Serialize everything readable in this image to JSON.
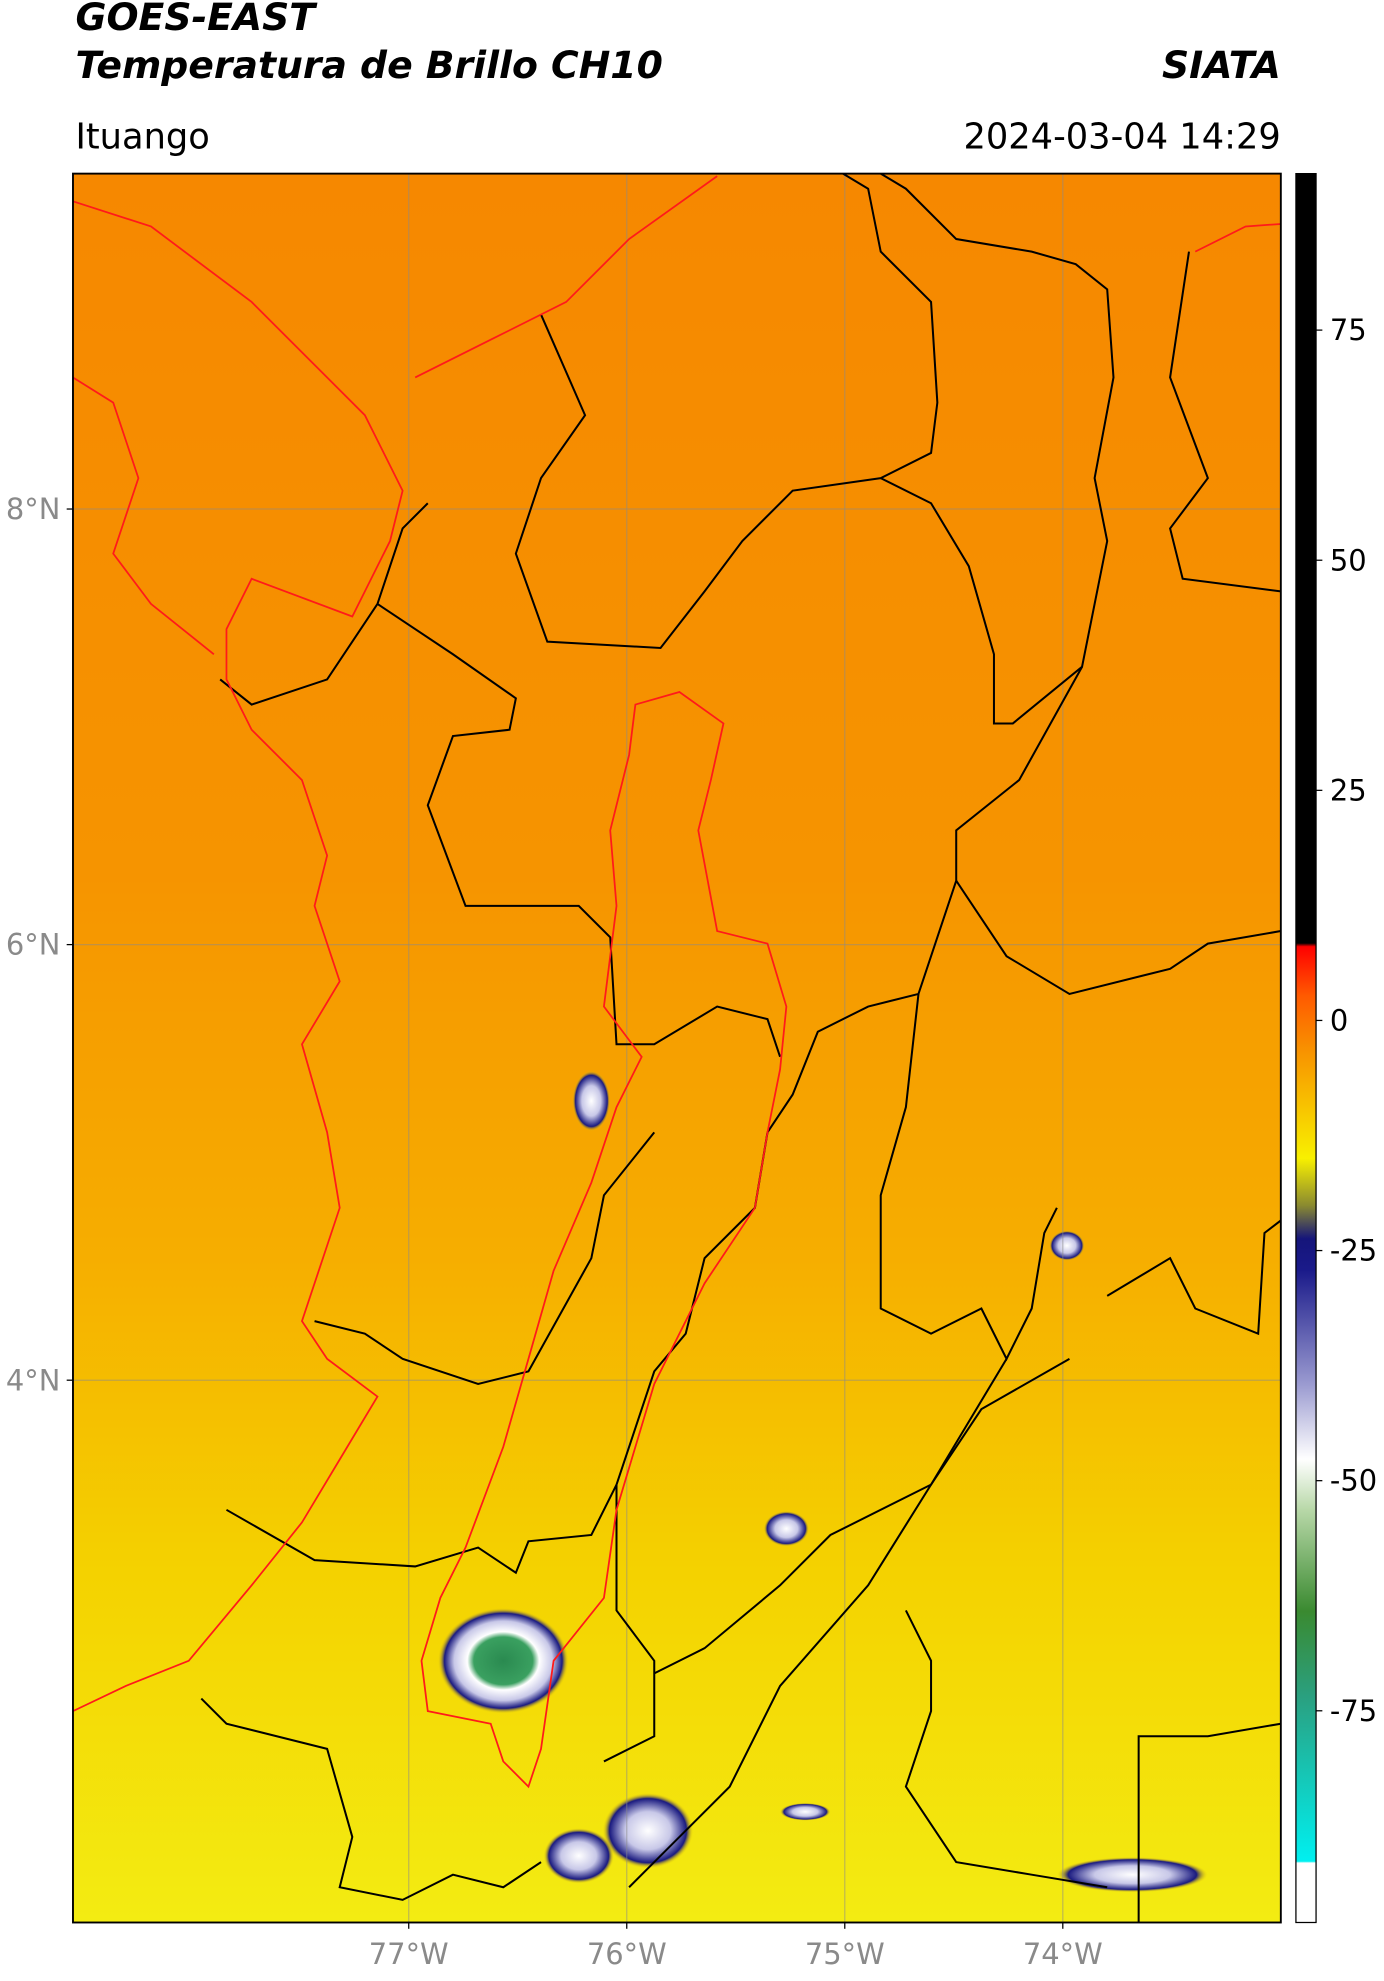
{
  "header": {
    "title": "GOES-EAST",
    "subtitle": "Temperatura de Brillo CH10",
    "source": "SIATA",
    "location": "Ituango",
    "datetime": "2024-03-04 14:29"
  },
  "map": {
    "xlim": [
      -78.54,
      -73.0
    ],
    "ylim": [
      1.51,
      9.54
    ],
    "grid": true,
    "xticks": [
      {
        "value": -77,
        "label": "77°W"
      },
      {
        "value": -76,
        "label": "76°W"
      },
      {
        "value": -75,
        "label": "75°W"
      },
      {
        "value": -74,
        "label": "74°W"
      }
    ],
    "yticks": [
      {
        "value": 8,
        "label": "8°N"
      },
      {
        "value": 6,
        "label": "6°N"
      },
      {
        "value": 4,
        "label": "4°N"
      }
    ]
  },
  "colorbar": {
    "lim": [
      -98,
      92
    ],
    "ticks": [
      75,
      50,
      25,
      0,
      -25,
      -50,
      -75
    ]
  }
}
